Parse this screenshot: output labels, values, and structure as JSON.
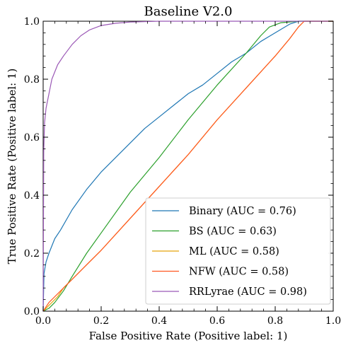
{
  "chart_data": {
    "type": "line",
    "title": "Baseline V2.0",
    "xlabel": "False Positive Rate (Positive label: 1)",
    "ylabel": "True Positive Rate (Positive label: 1)",
    "xlim": [
      0.0,
      1.0
    ],
    "ylim": [
      0.0,
      1.0
    ],
    "xticks": [
      "0.0",
      "0.2",
      "0.4",
      "0.6",
      "0.8",
      "1.0"
    ],
    "yticks": [
      "0.0",
      "0.2",
      "0.4",
      "0.6",
      "0.8",
      "1.0"
    ],
    "grid": false,
    "legend_position": "lower-right",
    "series": [
      {
        "name": "Binary (AUC = 0.76)",
        "color": "#1f77b4",
        "points": [
          [
            0,
            0
          ],
          [
            0.003,
            0.13
          ],
          [
            0.01,
            0.17
          ],
          [
            0.02,
            0.2
          ],
          [
            0.04,
            0.25
          ],
          [
            0.06,
            0.28
          ],
          [
            0.1,
            0.35
          ],
          [
            0.15,
            0.42
          ],
          [
            0.2,
            0.48
          ],
          [
            0.25,
            0.53
          ],
          [
            0.3,
            0.58
          ],
          [
            0.35,
            0.63
          ],
          [
            0.4,
            0.67
          ],
          [
            0.45,
            0.71
          ],
          [
            0.5,
            0.75
          ],
          [
            0.55,
            0.78
          ],
          [
            0.6,
            0.82
          ],
          [
            0.65,
            0.86
          ],
          [
            0.7,
            0.89
          ],
          [
            0.75,
            0.93
          ],
          [
            0.8,
            0.96
          ],
          [
            0.85,
            0.99
          ],
          [
            0.88,
            1.0
          ],
          [
            1.0,
            1.0
          ]
        ]
      },
      {
        "name": "BS (AUC = 0.63)",
        "color": "#2ca02c",
        "points": [
          [
            0,
            0
          ],
          [
            0.02,
            0.01
          ],
          [
            0.04,
            0.03
          ],
          [
            0.07,
            0.07
          ],
          [
            0.1,
            0.12
          ],
          [
            0.15,
            0.2
          ],
          [
            0.2,
            0.27
          ],
          [
            0.3,
            0.41
          ],
          [
            0.4,
            0.53
          ],
          [
            0.5,
            0.66
          ],
          [
            0.6,
            0.78
          ],
          [
            0.7,
            0.89
          ],
          [
            0.75,
            0.95
          ],
          [
            0.78,
            0.98
          ],
          [
            0.82,
            0.995
          ],
          [
            0.88,
            1.0
          ],
          [
            1.0,
            1.0
          ]
        ]
      },
      {
        "name": "ML (AUC = 0.58)",
        "color": "#e5a50a",
        "points": [
          [
            0,
            0
          ],
          [
            0.02,
            0.02
          ],
          [
            0.05,
            0.05
          ],
          [
            0.07,
            0.08
          ],
          [
            0.1,
            0.11
          ],
          [
            0.2,
            0.21
          ],
          [
            0.3,
            0.32
          ],
          [
            0.4,
            0.43
          ],
          [
            0.5,
            0.54
          ],
          [
            0.6,
            0.66
          ],
          [
            0.7,
            0.77
          ],
          [
            0.8,
            0.88
          ],
          [
            0.85,
            0.94
          ],
          [
            0.88,
            0.98
          ],
          [
            0.9,
            1.0
          ],
          [
            1.0,
            1.0
          ]
        ]
      },
      {
        "name": "NFW (AUC = 0.58)",
        "color": "#ff5722",
        "points": [
          [
            0,
            0
          ],
          [
            0.02,
            0.03
          ],
          [
            0.05,
            0.06
          ],
          [
            0.07,
            0.08
          ],
          [
            0.1,
            0.11
          ],
          [
            0.2,
            0.21
          ],
          [
            0.3,
            0.32
          ],
          [
            0.4,
            0.43
          ],
          [
            0.5,
            0.54
          ],
          [
            0.6,
            0.66
          ],
          [
            0.7,
            0.77
          ],
          [
            0.8,
            0.88
          ],
          [
            0.85,
            0.94
          ],
          [
            0.88,
            0.98
          ],
          [
            0.9,
            1.0
          ],
          [
            1.0,
            1.0
          ]
        ]
      },
      {
        "name": "RRLyrae (AUC = 0.98)",
        "color": "#9b59b6",
        "points": [
          [
            0,
            0
          ],
          [
            0.002,
            0.55
          ],
          [
            0.005,
            0.65
          ],
          [
            0.01,
            0.7
          ],
          [
            0.02,
            0.75
          ],
          [
            0.03,
            0.8
          ],
          [
            0.05,
            0.85
          ],
          [
            0.07,
            0.88
          ],
          [
            0.1,
            0.92
          ],
          [
            0.13,
            0.95
          ],
          [
            0.16,
            0.97
          ],
          [
            0.2,
            0.985
          ],
          [
            0.25,
            0.993
          ],
          [
            0.3,
            0.997
          ],
          [
            0.4,
            1.0
          ],
          [
            1.0,
            1.0
          ]
        ]
      }
    ]
  }
}
